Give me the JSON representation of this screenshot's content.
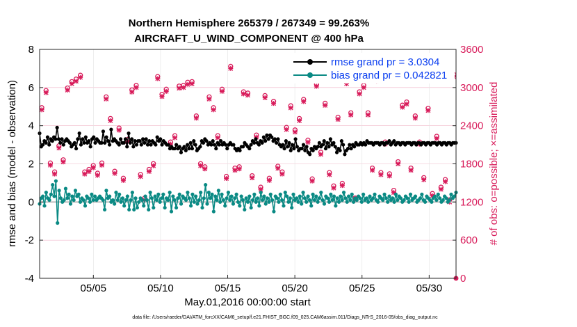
{
  "chart_data": {
    "type": "line",
    "title": [
      "Northern Hemisphere 265379 / 267349 = 99.263%",
      "AIRCRAFT_U_WIND_COMPONENT @ 400 hPa"
    ],
    "xlabel": "May.01,2016 00:00:00 start",
    "ylabel_left": "rmse and bias (model - observation)",
    "ylabel_right": "# of obs: o=possible; ×=assimilated",
    "ylim_left": [
      -4,
      8
    ],
    "ylim_right": [
      0,
      3600
    ],
    "xlim": [
      1,
      32
    ],
    "x_ticks": [
      5,
      10,
      15,
      20,
      25,
      30
    ],
    "x_tick_labels": [
      "05/05",
      "05/10",
      "05/15",
      "05/20",
      "05/25",
      "05/30"
    ],
    "y_ticks_left": [
      "-4",
      "-2",
      "0",
      "2",
      "4",
      "6",
      "8"
    ],
    "y_ticks_right": [
      "0",
      "600",
      "1200",
      "1800",
      "2400",
      "3000",
      "3600"
    ],
    "y_ticks_left_values": [
      -4,
      -2,
      0,
      2,
      4,
      6,
      8
    ],
    "y_ticks_right_values": [
      0,
      600,
      1200,
      1800,
      2400,
      3000,
      3600
    ],
    "footnote": "data file: /Users/raeder/DAI/ATM_forcXX/CAM6_setup/f.e21.FHIST_BGC.f09_025.CAM6assim.011/Diags_NTrS_2016-05/obs_diag_output.nc",
    "series": [
      {
        "name": "rmse grand pr = 3.0304",
        "color": "#000000",
        "values": [
          3.6,
          2.9,
          3.0,
          3.2,
          3.1,
          3.4,
          3.0,
          3.3,
          3.2,
          3.4,
          3.3,
          3.9,
          3.3,
          3.1,
          3.3,
          3.0,
          3.2,
          3.3,
          3.2,
          3.1,
          2.9,
          3.0,
          3.1,
          2.8,
          3.3,
          3.6,
          3.0,
          3.3,
          3.1,
          3.4,
          3.1,
          3.2,
          2.9,
          3.3,
          3.4,
          3.1,
          3.3,
          3.2,
          3.1,
          3.1,
          3.7,
          3.1,
          3.4,
          3.2,
          3.0,
          3.8,
          3.2,
          3.3,
          3.2,
          3.1,
          3.0,
          3.3,
          3.1,
          3.1,
          3.3,
          2.9,
          3.6,
          3.1,
          3.3,
          2.9,
          3.2,
          3.0,
          3.2,
          3.2,
          3.0,
          3.3,
          3.1,
          3.3,
          3.0,
          3.2,
          3.0,
          3.2,
          3.1,
          3.0,
          3.4,
          3.2,
          3.3,
          3.0,
          3.2,
          3.1,
          3.0,
          3.0,
          2.8,
          2.9,
          2.8,
          2.8,
          3.0,
          2.8,
          2.9,
          2.6,
          2.8,
          2.9,
          2.7,
          3.0,
          2.8,
          3.1,
          2.8,
          3.2,
          3.0,
          2.7,
          2.8,
          2.9,
          3.2,
          3.1,
          3.3,
          3.2,
          3.0,
          3.1,
          3.0,
          3.2,
          3.0,
          2.8,
          3.1,
          3.0,
          3.2,
          3.0,
          3.1,
          3.0,
          2.8,
          3.0,
          3.1,
          3.0,
          3.0,
          2.8,
          2.7,
          2.8,
          2.7,
          2.9,
          2.9,
          3.1,
          3.0,
          2.9,
          2.8,
          3.0,
          3.2,
          3.1,
          3.3,
          3.1,
          3.0,
          3.2,
          3.1,
          3.4,
          3.2,
          3.5,
          3.3,
          3.5,
          3.4,
          3.2,
          3.3,
          3.1,
          3.3,
          3.0,
          2.9,
          3.0,
          2.8,
          3.2,
          2.9,
          3.1,
          2.7,
          3.0,
          2.8,
          3.3,
          2.9,
          2.7,
          2.8,
          2.8,
          3.0,
          2.7,
          2.9,
          2.6,
          2.5,
          2.8,
          2.7,
          2.9,
          2.8,
          2.9,
          3.1,
          2.9,
          3.0,
          3.2,
          2.8,
          3.1,
          2.9,
          3.3,
          3.0,
          3.1,
          2.9,
          2.6,
          2.8,
          2.7,
          3.2,
          3.0,
          2.5,
          2.7,
          2.8,
          3.0,
          2.8,
          3.0,
          2.9,
          3.1,
          3.0,
          3.0,
          3.1,
          3.0,
          3.1,
          3.0,
          3.2,
          3.1,
          3.1,
          3.1,
          3.0,
          3.1,
          3.1,
          3.1,
          3.0,
          3.1,
          3.1,
          3.0,
          3.1,
          3.1,
          3.2,
          3.0,
          3.1,
          3.2,
          3.0,
          3.1,
          3.1,
          3.0,
          3.1,
          3.1,
          3.0,
          3.1,
          3.1,
          3.1,
          3.0,
          3.1,
          3.1,
          3.0,
          3.1,
          3.1,
          3.0,
          3.1,
          3.1,
          3.0,
          3.1,
          3.1,
          3.0,
          3.1,
          3.1,
          3.1,
          3.0,
          3.1,
          3.1,
          3.0,
          3.1,
          3.1,
          3.0,
          3.1,
          3.1,
          3.0,
          3.1,
          3.1,
          3.1
        ]
      },
      {
        "name": "bias grand pr = 0.042821",
        "color": "#0a8a84",
        "values": [
          -0.1,
          0.2,
          0.3,
          -0.2,
          0.5,
          0.2,
          0.1,
          0.4,
          0.9,
          0.3,
          1.1,
          -1.1,
          0.6,
          0.2,
          0.0,
          0.1,
          0.7,
          0.2,
          0.4,
          -0.1,
          0.3,
          0.1,
          0.6,
          0.3,
          0.4,
          0.0,
          0.2,
          0.1,
          -0.2,
          0.3,
          0.2,
          0.0,
          0.4,
          0.1,
          0.3,
          0.1,
          0.2,
          0.3,
          0.2,
          0.1,
          -0.4,
          0.6,
          0.2,
          0.3,
          0.0,
          0.1,
          -0.1,
          0.5,
          0.1,
          0.4,
          0.0,
          0.2,
          -0.2,
          0.1,
          0.3,
          -0.4,
          0.1,
          0.5,
          -0.4,
          0.2,
          -0.3,
          0.0,
          0.2,
          0.1,
          -0.2,
          0.3,
          0.1,
          -0.4,
          0.5,
          0.2,
          -0.3,
          0.3,
          0.1,
          0.4,
          0.0,
          0.2,
          0.4,
          -0.3,
          0.2,
          0.1,
          0.5,
          -0.5,
          0.3,
          0.1,
          -0.3,
          0.2,
          0.4,
          -0.1,
          0.3,
          0.2,
          0.1,
          0.5,
          0.2,
          -0.2,
          0.4,
          0.0,
          0.3,
          -0.1,
          0.1,
          0.5,
          -0.3,
          0.2,
          0.9,
          -0.1,
          0.5,
          0.2,
          0.4,
          -0.5,
          0.3,
          0.1,
          0.6,
          0.0,
          0.4,
          0.1,
          -0.2,
          0.2,
          0.5,
          0.1,
          0.3,
          -0.1,
          0.2,
          0.4,
          0.0,
          -0.2,
          0.3,
          0.1,
          -0.4,
          0.2,
          0.0,
          0.3,
          -0.3,
          0.1,
          0.4,
          0.0,
          0.2,
          -0.2,
          0.5,
          0.1,
          0.3,
          -0.1,
          0.2,
          0.0,
          0.4,
          0.1,
          -0.5,
          0.3,
          0.2,
          0.0,
          0.4,
          0.1,
          -0.2,
          0.5,
          0.3,
          0.0,
          0.2,
          -0.3,
          0.4,
          0.1,
          0.2,
          0.0,
          0.3,
          -0.1,
          0.5,
          0.2,
          0.0,
          0.3,
          0.1,
          -0.2,
          0.4,
          0.1,
          0.3,
          0.0,
          0.2,
          0.5,
          0.1,
          -0.1,
          0.3,
          0.2,
          0.0,
          0.4,
          0.1,
          0.3,
          -0.2,
          0.2,
          0.0,
          0.3,
          0.1,
          0.5,
          0.2,
          0.0,
          0.3,
          0.1,
          0.4,
          0.0,
          0.2,
          0.1,
          0.3,
          0.2,
          0.0,
          0.4,
          0.1,
          0.2,
          0.0,
          0.3,
          0.1,
          0.2,
          0.4,
          0.1,
          0.0,
          0.3,
          0.2,
          0.1,
          0.4,
          0.2,
          0.0,
          0.3,
          0.1,
          0.2,
          0.0,
          0.4,
          0.1,
          0.3,
          0.2,
          0.0,
          0.1,
          0.3,
          0.2,
          0.0,
          0.4,
          0.1,
          0.2,
          0.3,
          0.0,
          0.1,
          0.2,
          0.4,
          0.1,
          0.0,
          0.3,
          0.2,
          0.1,
          0.0,
          0.2,
          0.3,
          0.1,
          0.4,
          0.2,
          0.0,
          0.1,
          0.3,
          0.2,
          0.0,
          0.1,
          0.4,
          0.2,
          0.3,
          0.5
        ]
      }
    ],
    "obs_possible": {
      "name": "o=possible",
      "color": "#d81b5a",
      "values": [
        2650,
        2920,
        1780,
        1640,
        2050,
        1830,
        2960,
        3060,
        3100,
        3160,
        1640,
        1680,
        1740,
        1620,
        1780,
        2820,
        2480,
        1650,
        2330,
        1540,
        2150,
        2930,
        3000,
        1600,
        1230,
        1680,
        1770,
        3140,
        2860,
        2940,
        2110,
        2210,
        2990,
        3000,
        3050,
        3060,
        2520,
        1770,
        1720,
        2820,
        2650,
        2210,
        2940,
        1570,
        3300,
        1700,
        1720,
        2900,
        2880,
        1580,
        2220,
        1400,
        2840,
        1540,
        2750,
        1730,
        1640,
        2340,
        2680,
        2300,
        2480,
        2780,
        2140,
        1530,
        3020,
        1950,
        2720,
        1630,
        1420,
        2500,
        1460,
        3060,
        2570,
        1230,
        2900,
        3000,
        2570,
        1700,
        3100,
        1630,
        2110,
        1610,
        1350,
        1800,
        2690,
        2740,
        1700,
        2520,
        2110,
        1550,
        2640,
        1300,
        2200,
        1400,
        1520,
        1200,
        3170
      ],
      "note": "red circles; x = assimilated counts plotted at nearly the same values"
    },
    "legend_position": "top-right",
    "zero_line": true
  }
}
